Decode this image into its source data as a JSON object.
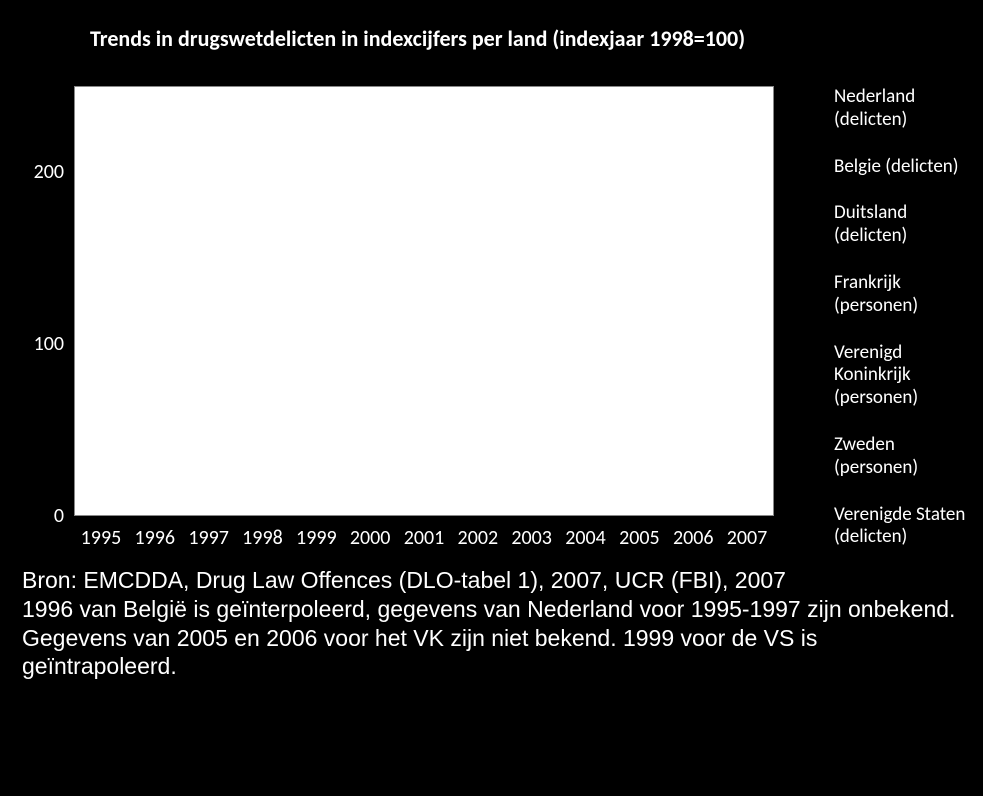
{
  "chart": {
    "type": "line",
    "title": "Trends in drugswetdelicten in indexcijfers per land (indexjaar 1998=100)",
    "title_fontsize": 22,
    "title_fontweight": "bold",
    "background_color": "#000000",
    "plot_background_color": "#ffffff",
    "text_color": "#ffffff",
    "x_categories": [
      "1995",
      "1996",
      "1997",
      "1998",
      "1999",
      "2000",
      "2001",
      "2002",
      "2003",
      "2004",
      "2005",
      "2006",
      "2007"
    ],
    "x_fontsize": 20,
    "ylim": [
      0,
      250
    ],
    "ytick_values": [
      0,
      100,
      200
    ],
    "y_fontsize": 20,
    "grid": false,
    "series": [
      {
        "name": "Nederland (delicten)",
        "marker": "asterisk",
        "color": "#000000"
      },
      {
        "name": "Belgie (delicten)",
        "marker": "diamond",
        "color": "#000000"
      },
      {
        "name": "Duitsland (delicten)",
        "marker": "triangle",
        "color": "#000000"
      },
      {
        "name": "Frankrijk (personen)",
        "marker": "x",
        "color": "#000000"
      },
      {
        "name": "Verenigd Koninkrijk (personen)",
        "marker": "plus",
        "color": "#000000"
      },
      {
        "name": "Zweden (personen)",
        "marker": "circle",
        "color": "#000000"
      },
      {
        "name": "Verenigde Staten (delicten)",
        "marker": "square",
        "color": "#000000"
      }
    ],
    "legend_fontsize": 19,
    "legend_position": "right",
    "line_color": "#000000",
    "line_width": 2
  },
  "footnote": {
    "text": "Bron: EMCDDA, Drug Law Offences (DLO-tabel 1), 2007, UCR (FBI), 2007\n1996 van België is geïnterpoleerd, gegevens van Nederland voor 1995-1997 zijn onbekend.\nGegevens van 2005 en 2006 voor het VK zijn niet bekend. 1999 voor de VS is geïntrapoleerd.",
    "fontsize": 23,
    "color": "#ffffff"
  }
}
